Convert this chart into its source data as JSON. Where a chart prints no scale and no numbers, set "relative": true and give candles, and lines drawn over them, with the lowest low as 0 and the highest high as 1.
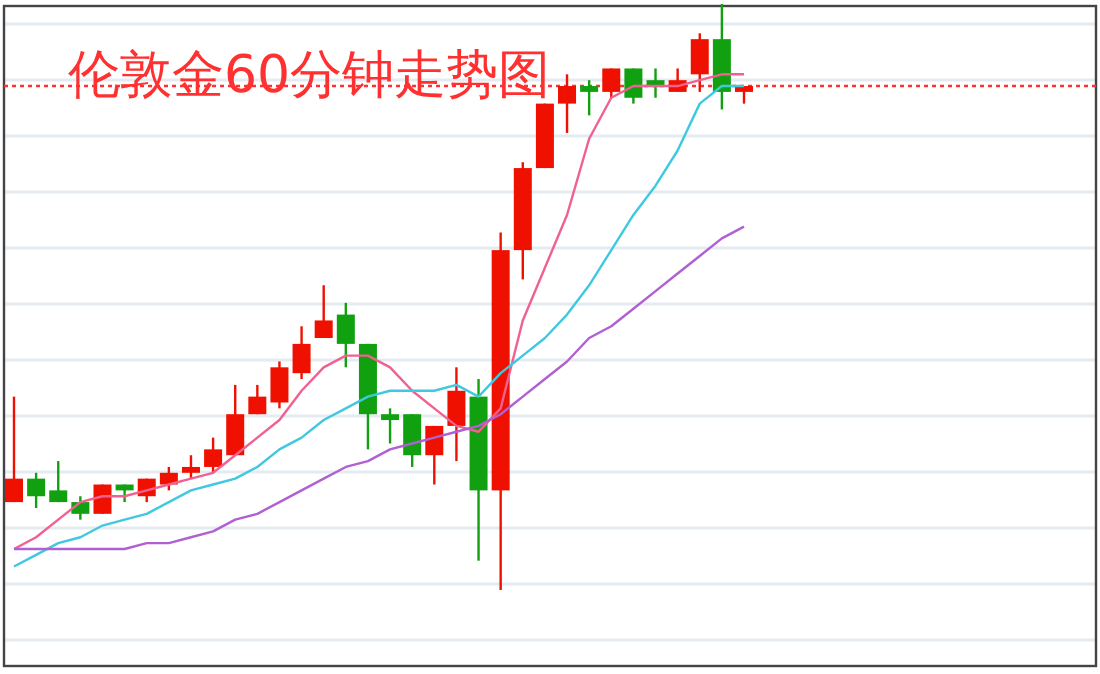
{
  "chart_data": {
    "type": "candlestick",
    "title": "伦敦金60分钟走势图",
    "relative": true,
    "grid": true,
    "categories": [
      null,
      null,
      null,
      null,
      null,
      null,
      null,
      null,
      null,
      null,
      null,
      null,
      null,
      null,
      null,
      null,
      null,
      null,
      null,
      null,
      null,
      null,
      null,
      null,
      null,
      null,
      null,
      null,
      null,
      null,
      null,
      null,
      null,
      null
    ],
    "ohlc": [
      [
        0.15,
        0.33,
        0.15,
        0.19
      ],
      [
        0.19,
        0.2,
        0.14,
        0.16
      ],
      [
        0.17,
        0.22,
        0.15,
        0.15
      ],
      [
        0.15,
        0.16,
        0.12,
        0.13
      ],
      [
        0.13,
        0.18,
        0.13,
        0.18
      ],
      [
        0.18,
        0.18,
        0.15,
        0.17
      ],
      [
        0.16,
        0.19,
        0.15,
        0.19
      ],
      [
        0.18,
        0.21,
        0.17,
        0.2
      ],
      [
        0.2,
        0.23,
        0.19,
        0.21
      ],
      [
        0.21,
        0.26,
        0.2,
        0.24
      ],
      [
        0.23,
        0.35,
        0.23,
        0.3
      ],
      [
        0.3,
        0.35,
        0.3,
        0.33
      ],
      [
        0.32,
        0.39,
        0.31,
        0.38
      ],
      [
        0.37,
        0.45,
        0.36,
        0.42
      ],
      [
        0.43,
        0.52,
        0.43,
        0.46
      ],
      [
        0.47,
        0.49,
        0.38,
        0.42
      ],
      [
        0.42,
        0.42,
        0.24,
        0.3
      ],
      [
        0.3,
        0.31,
        0.25,
        0.29
      ],
      [
        0.3,
        0.3,
        0.21,
        0.23
      ],
      [
        0.23,
        0.28,
        0.18,
        0.28
      ],
      [
        0.28,
        0.38,
        0.22,
        0.34
      ],
      [
        0.33,
        0.36,
        0.05,
        0.17
      ],
      [
        0.17,
        0.61,
        0,
        0.58
      ],
      [
        0.58,
        0.73,
        0.53,
        0.72
      ],
      [
        0.72,
        0.83,
        0.72,
        0.83
      ],
      [
        0.83,
        0.88,
        0.78,
        0.86
      ],
      [
        0.86,
        0.87,
        0.81,
        0.85
      ],
      [
        0.85,
        0.89,
        0.84,
        0.89
      ],
      [
        0.89,
        0.89,
        0.83,
        0.84
      ],
      [
        0.87,
        0.89,
        0.84,
        0.86
      ],
      [
        0.85,
        0.89,
        0.85,
        0.87
      ],
      [
        0.88,
        0.95,
        0.85,
        0.94
      ],
      [
        0.94,
        1,
        0.82,
        0.85
      ],
      [
        0.85,
        0.86,
        0.83,
        0.86
      ]
    ],
    "colors": [
      "#f01000",
      "#10a010",
      "#10a010",
      "#10a010",
      "#f01000",
      "#10a010",
      "#f01000",
      "#f01000",
      "#f01000",
      "#f01000",
      "#f01000",
      "#f01000",
      "#f01000",
      "#f01000",
      "#f01000",
      "#10a010",
      "#10a010",
      "#10a010",
      "#10a010",
      "#f01000",
      "#f01000",
      "#10a010",
      "#f01000",
      "#f01000",
      "#f01000",
      "#f01000",
      "#10a010",
      "#f01000",
      "#10a010",
      "#10a010",
      "#f01000",
      "#f01000",
      "#10a010",
      "#f01000"
    ],
    "series": [
      {
        "type": "line",
        "color": "#f06090",
        "values": [
          0.07,
          0.09,
          0.12,
          0.15,
          0.16,
          0.16,
          0.17,
          0.18,
          0.19,
          0.2,
          0.23,
          0.26,
          0.29,
          0.34,
          0.38,
          0.4,
          0.4,
          0.38,
          0.34,
          0.31,
          0.28,
          0.27,
          0.31,
          0.46,
          0.55,
          0.64,
          0.77,
          0.84,
          0.86,
          0.86,
          0.86,
          0.87,
          0.88,
          0.88
        ]
      },
      {
        "type": "line",
        "color": "#40c8e0",
        "values": [
          0.04,
          0.06,
          0.08,
          0.09,
          0.11,
          0.12,
          0.13,
          0.15,
          0.17,
          0.18,
          0.19,
          0.21,
          0.24,
          0.26,
          0.29,
          0.31,
          0.33,
          0.34,
          0.34,
          0.34,
          0.35,
          0.33,
          0.37,
          0.4,
          0.43,
          0.47,
          0.52,
          0.58,
          0.64,
          0.69,
          0.75,
          0.83,
          0.86,
          0.86
        ]
      },
      {
        "type": "line",
        "color": "#b060d0",
        "values": [
          0.07,
          0.07,
          0.07,
          0.07,
          0.07,
          0.07,
          0.08,
          0.08,
          0.09,
          0.1,
          0.12,
          0.13,
          0.15,
          0.17,
          0.19,
          0.21,
          0.22,
          0.24,
          0.25,
          0.26,
          0.27,
          0.28,
          0.3,
          0.33,
          0.36,
          0.39,
          0.43,
          0.45,
          0.48,
          0.51,
          0.54,
          0.57,
          0.6,
          0.62
        ]
      }
    ],
    "ref_lines": [
      {
        "axis": "y",
        "value": 0.86,
        "color": "#ff3030",
        "line_style": "dotted"
      }
    ]
  }
}
